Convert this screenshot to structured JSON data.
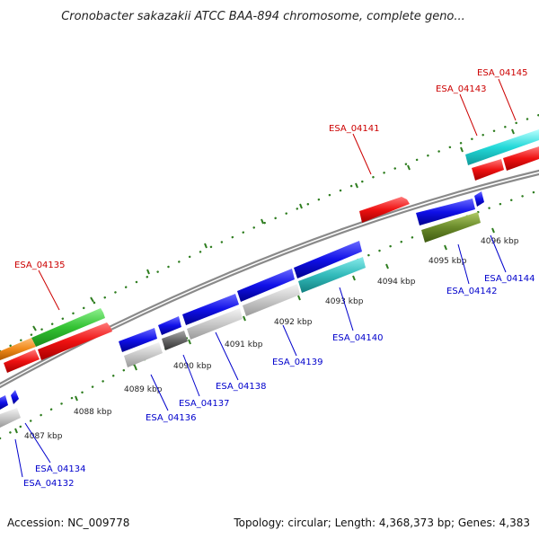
{
  "title": "Cronobacter sakazakii ATCC BAA-894 chromosome, complete geno...",
  "footer": {
    "accession": "Accession: NC_009778",
    "summary": "Topology: circular; Length: 4,368,373 bp; Genes: 4,383"
  },
  "colors": {
    "forward_label": "#cc0000",
    "reverse_label": "#0000cc",
    "backbone": "#8a8a8a",
    "tick": "#2e7d1f"
  },
  "ticks": [
    "4087 kbp",
    "4088 kbp",
    "4089 kbp",
    "4090 kbp",
    "4091 kbp",
    "4092 kbp",
    "4093 kbp",
    "4094 kbp",
    "4095 kbp",
    "4096 kbp"
  ],
  "forward_labels": [
    "ESA_04135",
    "ESA_04141",
    "ESA_04143",
    "ESA_04145"
  ],
  "reverse_labels": [
    "ESA_04132",
    "ESA_04134",
    "ESA_04136",
    "ESA_04137",
    "ESA_04138",
    "ESA_04139",
    "ESA_04140",
    "ESA_04142",
    "ESA_04144"
  ]
}
